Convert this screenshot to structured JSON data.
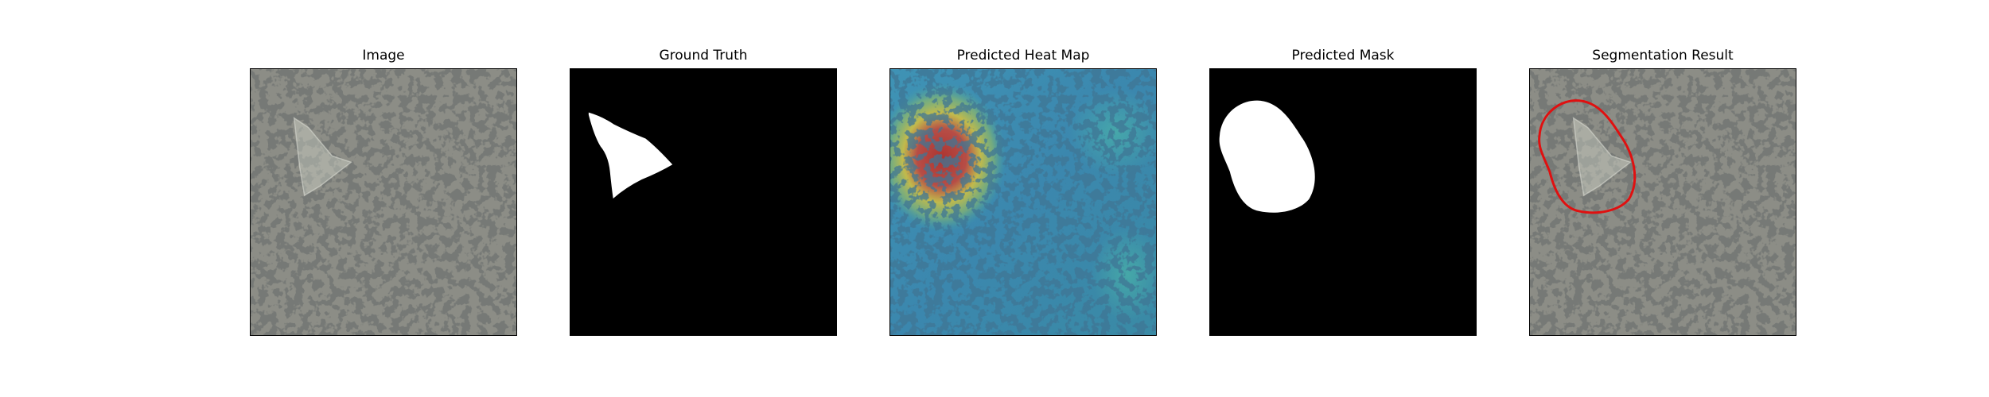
{
  "panels": [
    {
      "title": "Image"
    },
    {
      "title": "Ground Truth"
    },
    {
      "title": "Predicted Heat Map"
    },
    {
      "title": "Predicted Mask"
    },
    {
      "title": "Segmentation Result"
    }
  ],
  "colors": {
    "texture_base": "#8c8d86",
    "texture_spot": "#2f302d",
    "mask_fg": "#ffffff",
    "mask_bg": "#000000",
    "heat_low": "#2d6fa3",
    "heat_mid": "#d8c23a",
    "heat_high": "#b3302a",
    "contour": "#e01010"
  }
}
